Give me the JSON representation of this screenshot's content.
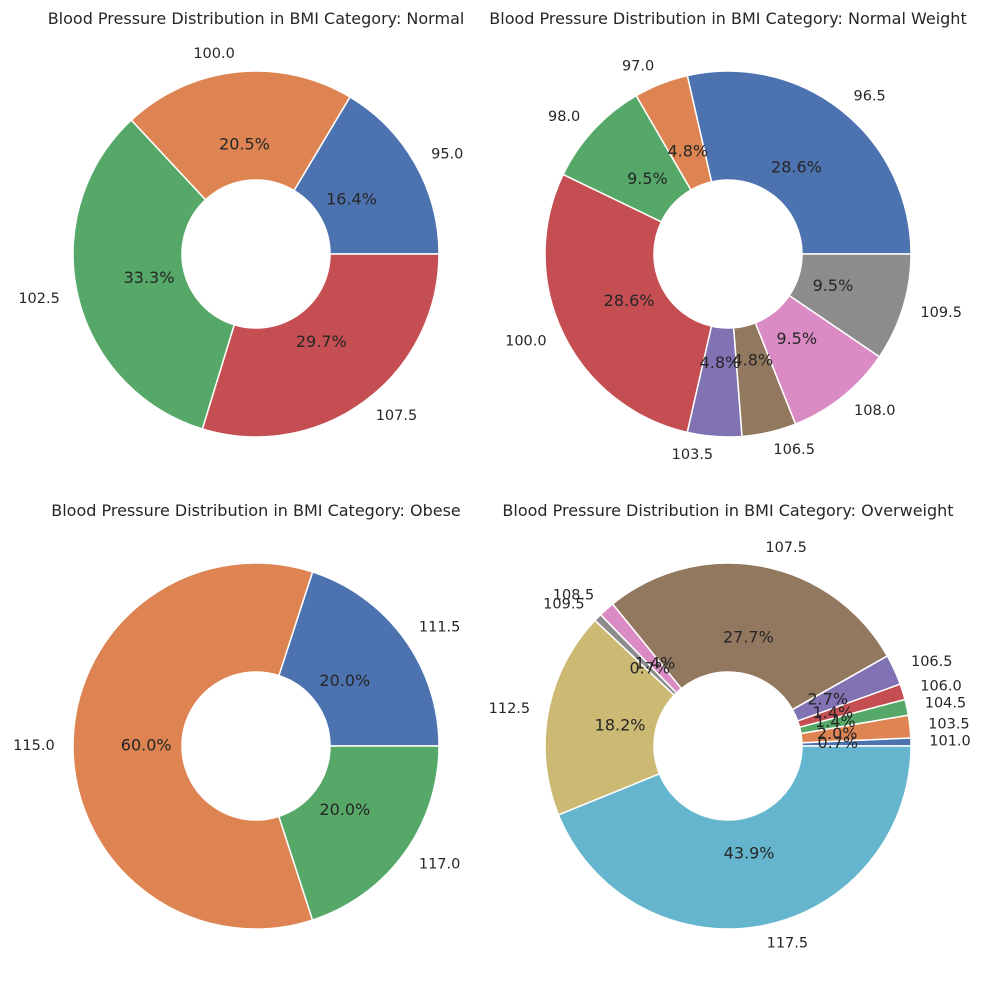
{
  "chart_data": [
    {
      "type": "pie",
      "title": "Blood Pressure Distribution in BMI Category: Normal",
      "donut": true,
      "start_angle_deg": 0,
      "direction": "counterclockwise",
      "categories": [
        "95.0",
        "100.0",
        "102.5",
        "107.5"
      ],
      "values": [
        16.4,
        20.5,
        33.3,
        29.7
      ],
      "percent_labels": [
        "16.4%",
        "20.5%",
        "33.3%",
        "29.7%"
      ],
      "colors": [
        "#4c72b0",
        "#dd8452",
        "#55a868",
        "#c44e52"
      ]
    },
    {
      "type": "pie",
      "title": "Blood Pressure Distribution in BMI Category: Normal Weight",
      "donut": true,
      "start_angle_deg": 0,
      "direction": "counterclockwise",
      "categories": [
        "96.5",
        "97.0",
        "98.0",
        "100.0",
        "103.5",
        "106.5",
        "108.0",
        "109.5"
      ],
      "values": [
        28.6,
        4.8,
        9.5,
        28.6,
        4.8,
        4.8,
        9.5,
        9.5
      ],
      "percent_labels": [
        "28.6%",
        "4.8%",
        "9.5%",
        "28.6%",
        "4.8%",
        "4.8%",
        "9.5%",
        "9.5%"
      ],
      "colors": [
        "#4c72b0",
        "#dd8452",
        "#55a868",
        "#c44e52",
        "#8172b3",
        "#937860",
        "#da8bc3",
        "#8c8c8c"
      ]
    },
    {
      "type": "pie",
      "title": "Blood Pressure Distribution in BMI Category: Obese",
      "donut": true,
      "start_angle_deg": 0,
      "direction": "counterclockwise",
      "categories": [
        "111.5",
        "115.0",
        "117.0"
      ],
      "values": [
        20.0,
        60.0,
        20.0
      ],
      "percent_labels": [
        "20.0%",
        "60.0%",
        "20.0%"
      ],
      "colors": [
        "#4c72b0",
        "#dd8452",
        "#55a868"
      ]
    },
    {
      "type": "pie",
      "title": "Blood Pressure Distribution in BMI Category: Overweight",
      "donut": true,
      "start_angle_deg": 0,
      "direction": "counterclockwise",
      "categories": [
        "101.0",
        "103.5",
        "104.5",
        "106.0",
        "106.5",
        "107.5",
        "108.5",
        "109.5",
        "112.5",
        "117.5"
      ],
      "values": [
        0.7,
        2.0,
        1.4,
        1.4,
        2.7,
        27.7,
        1.4,
        0.7,
        18.2,
        43.9
      ],
      "percent_labels": [
        "0.7%",
        "2.0%",
        "1.4%",
        "1.4%",
        "2.7%",
        "27.7%",
        "1.4%",
        "0.7%",
        "18.2%",
        "43.9%"
      ],
      "colors": [
        "#4c72b0",
        "#dd8452",
        "#55a868",
        "#c44e52",
        "#8172b3",
        "#937860",
        "#da8bc3",
        "#8c8c8c",
        "#ccb974",
        "#64b5cd"
      ]
    }
  ]
}
